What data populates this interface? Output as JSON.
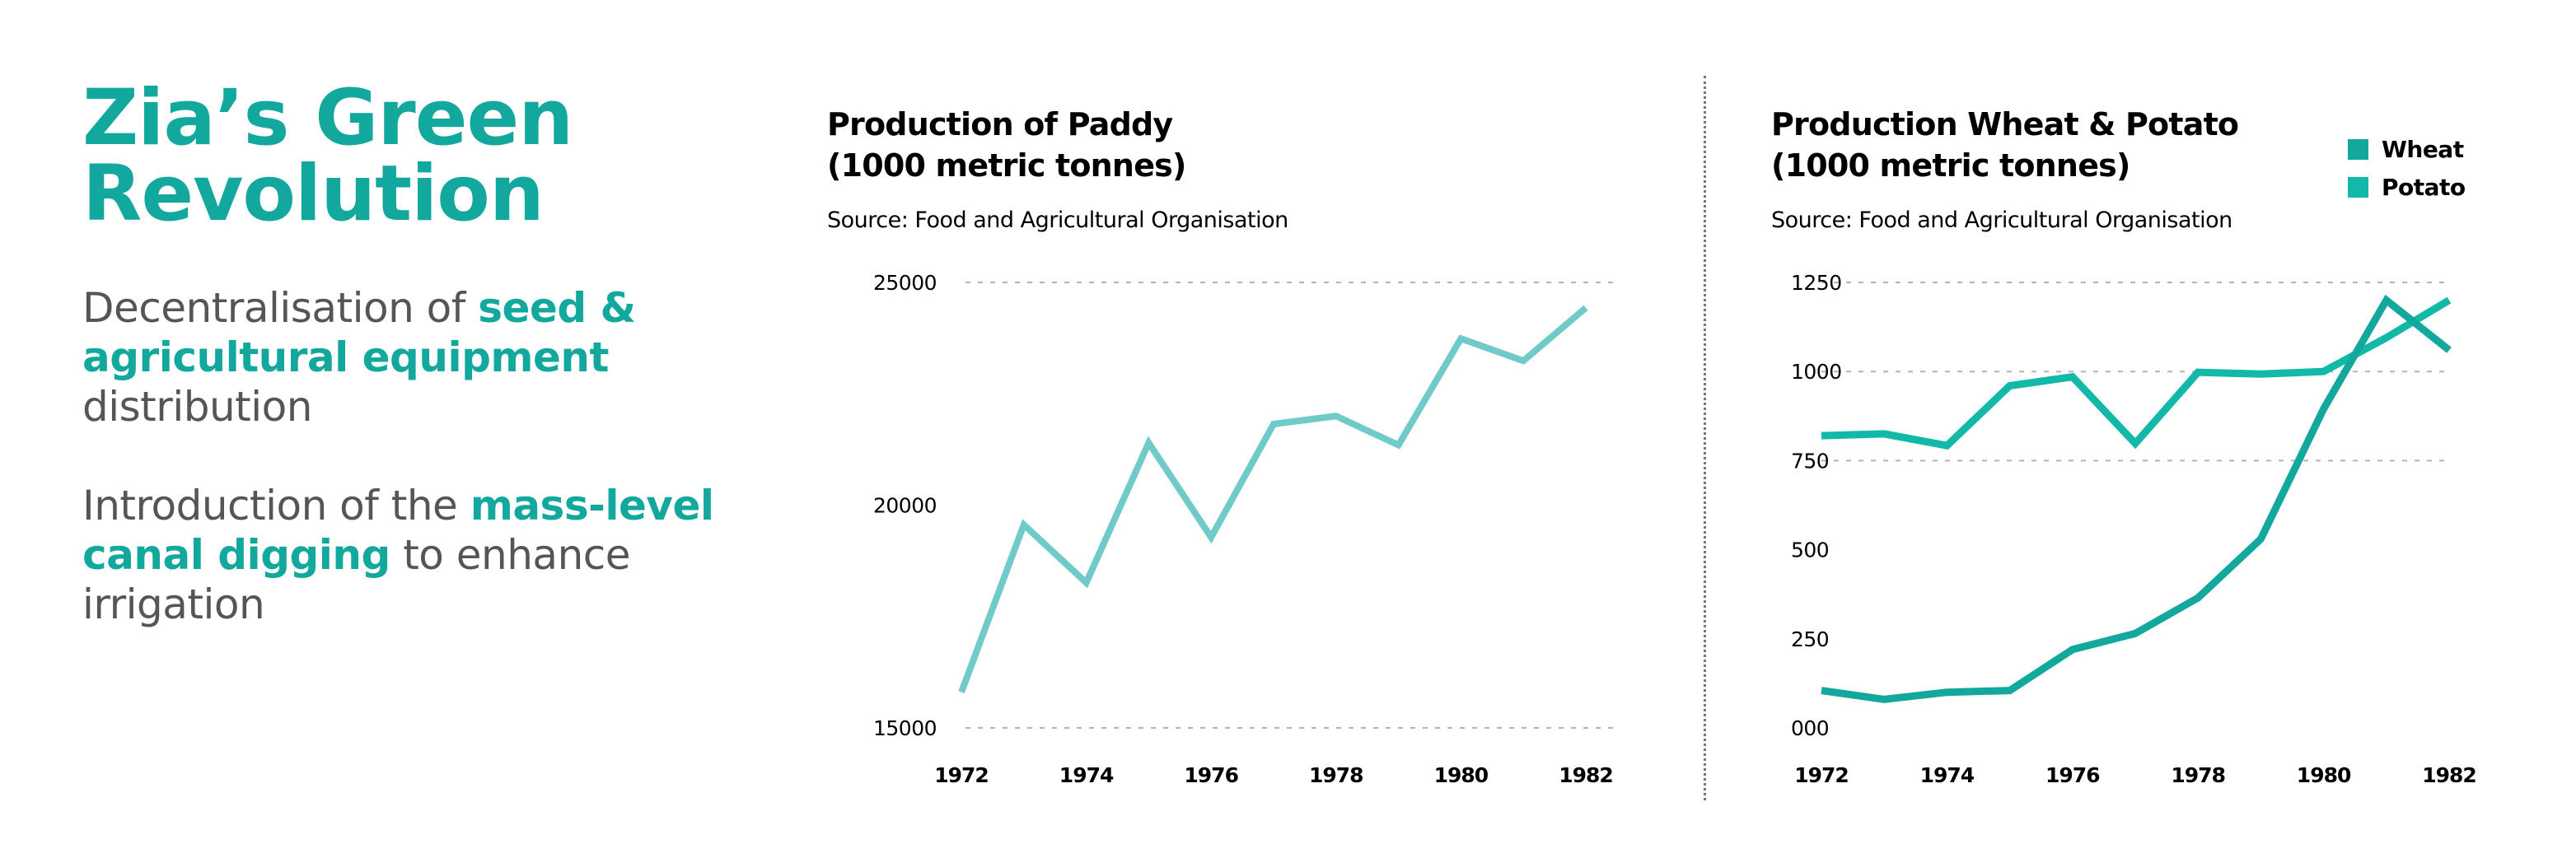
{
  "intro": {
    "title_line1": "Zia’s Green",
    "title_line2": "Revolution",
    "point1": {
      "prefix": "Decentralisation of ",
      "highlight": "seed & agricultural equipment",
      "suffix": " distribution"
    },
    "point2": {
      "prefix": "Introduction of the ",
      "highlight": "mass-level canal digging",
      "suffix": " to enhance irrigation"
    }
  },
  "colors": {
    "accent": "#13a89e",
    "paddy_line": "#70cbc8",
    "wheat": "#13a89e",
    "potato": "#12b9a8",
    "body_text": "#555555",
    "grid": "#b3b3b3",
    "divider": "#777777"
  },
  "chart_data": [
    {
      "type": "line",
      "title": "Production of Paddy",
      "subtitle_units": "(1000 metric tonnes)",
      "source": "Source: Food and Agricultural Organisation",
      "xlabel": "",
      "ylabel": "",
      "x": [
        1972,
        1973,
        1974,
        1975,
        1976,
        1977,
        1978,
        1979,
        1980,
        1981,
        1982
      ],
      "x_ticks": [
        "1972",
        "1974",
        "1976",
        "1978",
        "1980",
        "1982"
      ],
      "y_ticks": [
        "25000",
        "20000",
        "15000"
      ],
      "y_tick_values": [
        25000,
        20000,
        15000
      ],
      "ylim": [
        15000,
        25000
      ],
      "grid": "dashed horizontal at 25000 and 15000",
      "legend": "none",
      "series": [
        {
          "name": "Paddy",
          "values": [
            15800,
            19560,
            18260,
            21400,
            19280,
            21820,
            22000,
            21350,
            23740,
            23240,
            24430
          ]
        }
      ]
    },
    {
      "type": "line",
      "title": "Production Wheat & Potato",
      "subtitle_units": "(1000 metric tonnes)",
      "source": "Source: Food and Agricultural Organisation",
      "xlabel": "",
      "ylabel": "",
      "x": [
        1972,
        1973,
        1974,
        1975,
        1976,
        1977,
        1978,
        1979,
        1980,
        1981,
        1982
      ],
      "x_ticks": [
        "1972",
        "1974",
        "1976",
        "1978",
        "1980",
        "1982"
      ],
      "y_ticks": [
        "1250",
        "1000",
        "750",
        "500",
        "250",
        "000"
      ],
      "y_tick_values": [
        1250,
        1000,
        750,
        500,
        250,
        0
      ],
      "ylim": [
        0,
        1250
      ],
      "grid": "dashed horizontal at 1250, 1000 and 750",
      "legend": "top-right",
      "series": [
        {
          "name": "Wheat",
          "values": [
            105,
            80,
            100,
            105,
            220,
            265,
            365,
            530,
            895,
            1200,
            1060
          ]
        },
        {
          "name": "Potato",
          "values": [
            820,
            825,
            792,
            960,
            985,
            798,
            998,
            993,
            1000,
            1095,
            1200
          ]
        }
      ]
    }
  ]
}
